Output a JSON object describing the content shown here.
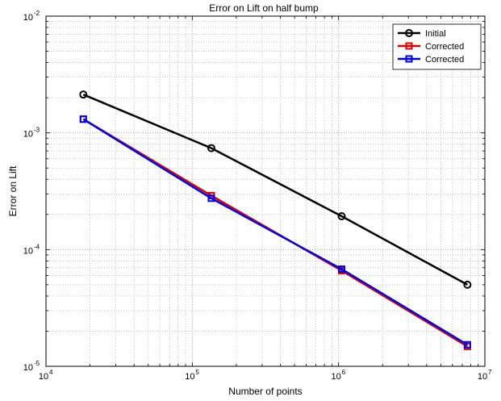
{
  "chart_data": {
    "type": "line",
    "title": "Error on Lift on half bump",
    "xlabel": "Number of points",
    "ylabel": "Error on Lift",
    "xscale": "log",
    "yscale": "log",
    "xlim": [
      10000,
      10000000
    ],
    "ylim": [
      1e-05,
      0.01
    ],
    "grid": true,
    "legend_position": "top-right",
    "x_ticks": [
      {
        "base": "10",
        "exp": "4"
      },
      {
        "base": "10",
        "exp": "5"
      },
      {
        "base": "10",
        "exp": "6"
      },
      {
        "base": "10",
        "exp": "7"
      }
    ],
    "y_ticks": [
      {
        "base": "10",
        "exp": "-5"
      },
      {
        "base": "10",
        "exp": "-4"
      },
      {
        "base": "10",
        "exp": "-3"
      },
      {
        "base": "10",
        "exp": "-2"
      }
    ],
    "series": [
      {
        "name": "Initial",
        "color": "#000000",
        "marker": "circle",
        "x": [
          18000,
          135000,
          1050000,
          7600000
        ],
        "y": [
          0.00213,
          0.00074,
          0.000193,
          5e-05
        ]
      },
      {
        "name": "Corrected",
        "color": "#dd0000",
        "marker": "square",
        "x": [
          18000,
          135000,
          1050000,
          7600000
        ],
        "y": [
          0.00131,
          0.00029,
          6.6e-05,
          1.48e-05
        ]
      },
      {
        "name": "Corrected",
        "color": "#0000ee",
        "marker": "square",
        "x": [
          18000,
          135000,
          1050000,
          7600000
        ],
        "y": [
          0.00131,
          0.000275,
          6.8e-05,
          1.53e-05
        ]
      }
    ]
  }
}
